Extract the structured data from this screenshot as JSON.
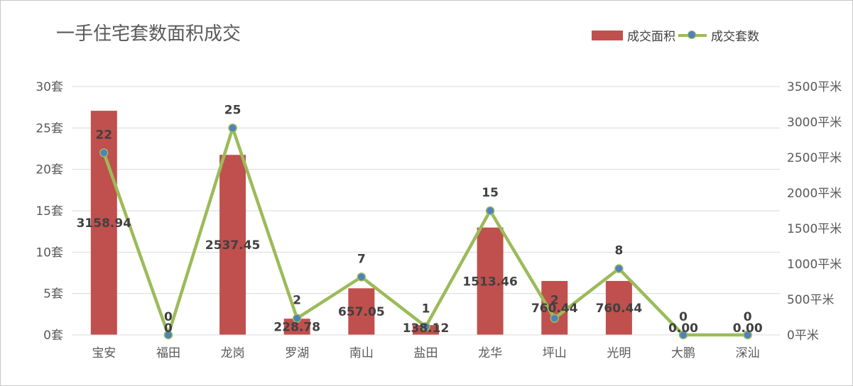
{
  "chart_data": {
    "type": "bar",
    "title": "一手住宅套数面积成交",
    "categories": [
      "宝安",
      "福田",
      "龙岗",
      "罗湖",
      "南山",
      "盐田",
      "龙华",
      "坪山",
      "光明",
      "大鹏",
      "深汕"
    ],
    "series": [
      {
        "name": "成交面积",
        "type": "bar",
        "axis": "right",
        "color": "#c0504d",
        "values": [
          3158.94,
          0,
          2537.45,
          228.78,
          657.05,
          138.12,
          1513.46,
          760.44,
          760.44,
          0,
          0
        ],
        "labels": [
          "3158.94",
          "0",
          "2537.45",
          "228.78",
          "657.05",
          "138.12",
          "1513.46",
          "760.44",
          "760.44",
          "0.00",
          "0.00"
        ]
      },
      {
        "name": "成交套数",
        "type": "line",
        "axis": "left",
        "color": "#9bbb59",
        "marker_color": "#4f81bd",
        "values": [
          22,
          0,
          25,
          2,
          7,
          1,
          15,
          2,
          8,
          0,
          0
        ],
        "labels": [
          "22",
          "0",
          "25",
          "2",
          "7",
          "1",
          "15",
          "2",
          "8",
          "0",
          "0"
        ]
      }
    ],
    "y_left": {
      "ylim": [
        0,
        30
      ],
      "ticks": [
        "0套",
        "5套",
        "10套",
        "15套",
        "20套",
        "25套",
        "30套"
      ]
    },
    "y_right": {
      "ylim": [
        0,
        3500
      ],
      "ticks": [
        "0平米",
        "500平米",
        "1000平米",
        "1500平米",
        "2000平米",
        "2500平米",
        "3000平米",
        "3500平米"
      ]
    },
    "grid": true,
    "legend_position": "top-right"
  }
}
